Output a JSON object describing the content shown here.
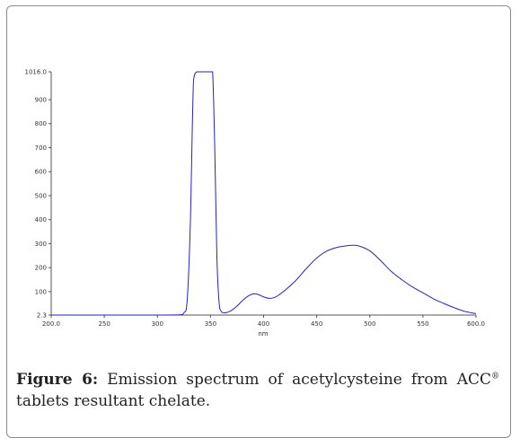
{
  "caption": {
    "label": "Figure 6:",
    "text_before": " Emission spectrum of acetylcysteine from ACC",
    "superscript": "®",
    "text_after": " tablets resultant chelate."
  },
  "chart_data": {
    "type": "line",
    "title": "",
    "xlabel": "nm",
    "ylabel": "",
    "xlim": [
      200.0,
      600.0
    ],
    "ylim": [
      2.3,
      1016.0
    ],
    "x_ticks": [
      "200.0",
      "250",
      "300",
      "350",
      "400",
      "450",
      "500",
      "550",
      "600.0"
    ],
    "y_ticks": [
      "2.3",
      "100",
      "200",
      "300",
      "400",
      "500",
      "600",
      "700",
      "800",
      "900",
      "1016.0"
    ],
    "line_color": "#2222cc",
    "series": [
      {
        "x": [
          200,
          250,
          300,
          320,
          325,
          328,
          331,
          334,
          337,
          340,
          345,
          350,
          352,
          354,
          356,
          358,
          360,
          363,
          366,
          370,
          375,
          380,
          385,
          390,
          395,
          400,
          405,
          410,
          415,
          420,
          430,
          440,
          450,
          460,
          470,
          480,
          485,
          490,
          500,
          510,
          520,
          530,
          540,
          550,
          560,
          570,
          580,
          590,
          600
        ],
        "y": [
          2.3,
          2.3,
          2.3,
          3,
          12,
          60,
          380,
          980,
          1016,
          1016,
          1016,
          1016,
          1016,
          700,
          250,
          60,
          18,
          12,
          14,
          22,
          40,
          62,
          80,
          90,
          88,
          78,
          72,
          75,
          88,
          105,
          145,
          195,
          240,
          270,
          285,
          292,
          293,
          290,
          270,
          230,
          185,
          150,
          120,
          95,
          70,
          50,
          32,
          17,
          8
        ]
      }
    ]
  }
}
